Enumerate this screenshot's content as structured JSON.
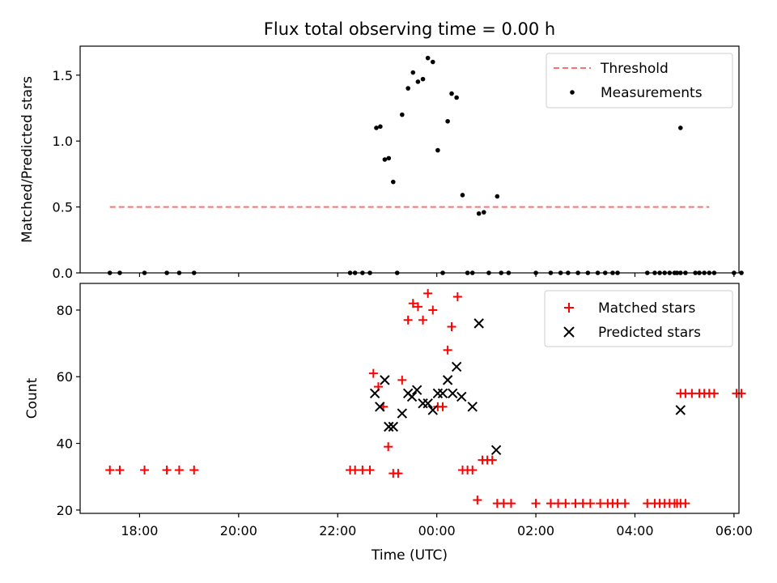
{
  "title": "Flux total observing time = 0.00 h",
  "chart_data": [
    {
      "type": "scatter",
      "ylabel": "Matched/Predicted stars",
      "xlim_hours": [
        16.8,
        30.1
      ],
      "ylim": [
        0,
        1.72
      ],
      "yticks": [
        0.0,
        0.5,
        1.0,
        1.5
      ],
      "ytick_labels": [
        "0.0",
        "0.5",
        "1.0",
        "1.5"
      ],
      "legend_position": "top-right",
      "legend": {
        "threshold": "Threshold",
        "measurements": "Measurements"
      },
      "threshold": {
        "name": "Threshold",
        "color": "#ff7070",
        "y": 0.5,
        "x_start": 17.4,
        "x_end": 29.5
      },
      "measurements": {
        "name": "Measurements",
        "color": "#000000",
        "points": [
          [
            17.4,
            0
          ],
          [
            17.6,
            0
          ],
          [
            18.1,
            0
          ],
          [
            18.55,
            0
          ],
          [
            18.8,
            0
          ],
          [
            19.1,
            0
          ],
          [
            22.25,
            0
          ],
          [
            22.35,
            0
          ],
          [
            22.5,
            0
          ],
          [
            22.65,
            0
          ],
          [
            22.78,
            1.1
          ],
          [
            22.86,
            1.11
          ],
          [
            22.95,
            0.86
          ],
          [
            23.03,
            0.87
          ],
          [
            23.12,
            0.69
          ],
          [
            23.2,
            0
          ],
          [
            23.3,
            1.2
          ],
          [
            23.42,
            1.4
          ],
          [
            23.52,
            1.52
          ],
          [
            23.62,
            1.45
          ],
          [
            23.72,
            1.47
          ],
          [
            23.82,
            1.63
          ],
          [
            23.92,
            1.6
          ],
          [
            24.02,
            0.93
          ],
          [
            24.12,
            0
          ],
          [
            24.22,
            1.15
          ],
          [
            24.3,
            1.36
          ],
          [
            24.4,
            1.33
          ],
          [
            24.52,
            0.59
          ],
          [
            24.62,
            0
          ],
          [
            24.72,
            0
          ],
          [
            24.85,
            0.45
          ],
          [
            24.95,
            0.46
          ],
          [
            25.05,
            0
          ],
          [
            25.22,
            0.58
          ],
          [
            25.3,
            0
          ],
          [
            25.45,
            0
          ],
          [
            26.0,
            0
          ],
          [
            26.3,
            0
          ],
          [
            26.5,
            0
          ],
          [
            26.65,
            0
          ],
          [
            26.85,
            0
          ],
          [
            27.05,
            0
          ],
          [
            27.25,
            0
          ],
          [
            27.4,
            0
          ],
          [
            27.55,
            0
          ],
          [
            27.65,
            0
          ],
          [
            28.25,
            0
          ],
          [
            28.4,
            0
          ],
          [
            28.5,
            0
          ],
          [
            28.6,
            0
          ],
          [
            28.7,
            0
          ],
          [
            28.8,
            0
          ],
          [
            28.85,
            0
          ],
          [
            28.92,
            0
          ],
          [
            29.02,
            0
          ],
          [
            28.92,
            1.1
          ],
          [
            29.22,
            0
          ],
          [
            29.3,
            0
          ],
          [
            29.4,
            0
          ],
          [
            29.5,
            0
          ],
          [
            29.6,
            0
          ],
          [
            30.0,
            0
          ],
          [
            30.15,
            0
          ]
        ]
      }
    },
    {
      "type": "scatter",
      "xlabel": "Time (UTC)",
      "ylabel": "Count",
      "xlim_hours": [
        16.8,
        30.1
      ],
      "ylim": [
        19,
        88
      ],
      "yticks": [
        20,
        40,
        60,
        80
      ],
      "ytick_labels": [
        "20",
        "40",
        "60",
        "80"
      ],
      "xticks_hours": [
        18,
        20,
        22,
        24,
        26,
        28,
        30
      ],
      "xtick_labels": [
        "18:00",
        "20:00",
        "22:00",
        "00:00",
        "02:00",
        "04:00",
        "06:00"
      ],
      "legend_position": "top-right",
      "legend": {
        "matched": "Matched stars",
        "predicted": "Predicted stars"
      },
      "series": [
        {
          "name": "Matched stars",
          "marker": "plus",
          "color": "#ff0000",
          "points": [
            [
              17.4,
              32
            ],
            [
              17.6,
              32
            ],
            [
              18.1,
              32
            ],
            [
              18.55,
              32
            ],
            [
              18.8,
              32
            ],
            [
              19.1,
              32
            ],
            [
              22.25,
              32
            ],
            [
              22.35,
              32
            ],
            [
              22.5,
              32
            ],
            [
              22.65,
              32
            ],
            [
              22.72,
              61
            ],
            [
              22.82,
              57
            ],
            [
              22.92,
              51
            ],
            [
              23.02,
              39
            ],
            [
              23.12,
              31
            ],
            [
              23.22,
              31
            ],
            [
              23.3,
              59
            ],
            [
              23.42,
              77
            ],
            [
              23.52,
              82
            ],
            [
              23.62,
              81
            ],
            [
              23.72,
              77
            ],
            [
              23.82,
              85
            ],
            [
              23.92,
              80
            ],
            [
              24.02,
              51
            ],
            [
              24.12,
              51
            ],
            [
              24.22,
              68
            ],
            [
              24.3,
              75
            ],
            [
              24.42,
              84
            ],
            [
              24.52,
              32
            ],
            [
              24.62,
              32
            ],
            [
              24.72,
              32
            ],
            [
              24.82,
              23
            ],
            [
              24.92,
              35
            ],
            [
              25.02,
              35
            ],
            [
              25.12,
              35
            ],
            [
              25.22,
              22
            ],
            [
              25.35,
              22
            ],
            [
              25.5,
              22
            ],
            [
              26.0,
              22
            ],
            [
              26.3,
              22
            ],
            [
              26.45,
              22
            ],
            [
              26.6,
              22
            ],
            [
              26.8,
              22
            ],
            [
              26.95,
              22
            ],
            [
              27.1,
              22
            ],
            [
              27.3,
              22
            ],
            [
              27.45,
              22
            ],
            [
              27.55,
              22
            ],
            [
              27.65,
              22
            ],
            [
              27.8,
              22
            ],
            [
              28.25,
              22
            ],
            [
              28.4,
              22
            ],
            [
              28.5,
              22
            ],
            [
              28.6,
              22
            ],
            [
              28.7,
              22
            ],
            [
              28.8,
              22
            ],
            [
              28.85,
              22
            ],
            [
              28.92,
              22
            ],
            [
              29.02,
              22
            ],
            [
              28.92,
              55
            ],
            [
              29.02,
              55
            ],
            [
              29.15,
              55
            ],
            [
              29.3,
              55
            ],
            [
              29.4,
              55
            ],
            [
              29.5,
              55
            ],
            [
              29.6,
              55
            ],
            [
              30.05,
              55
            ],
            [
              30.15,
              55
            ]
          ]
        },
        {
          "name": "Predicted stars",
          "marker": "x",
          "color": "#000000",
          "points": [
            [
              22.75,
              55
            ],
            [
              22.85,
              51
            ],
            [
              22.95,
              59
            ],
            [
              23.03,
              45
            ],
            [
              23.12,
              45
            ],
            [
              23.3,
              49
            ],
            [
              23.42,
              55
            ],
            [
              23.5,
              54
            ],
            [
              23.6,
              56
            ],
            [
              23.72,
              52
            ],
            [
              23.82,
              52
            ],
            [
              23.92,
              50
            ],
            [
              24.02,
              55
            ],
            [
              24.12,
              55
            ],
            [
              24.22,
              59
            ],
            [
              24.32,
              55
            ],
            [
              24.4,
              63
            ],
            [
              24.5,
              54
            ],
            [
              24.72,
              51
            ],
            [
              24.85,
              76
            ],
            [
              25.2,
              38
            ],
            [
              28.92,
              50
            ]
          ]
        }
      ]
    }
  ]
}
